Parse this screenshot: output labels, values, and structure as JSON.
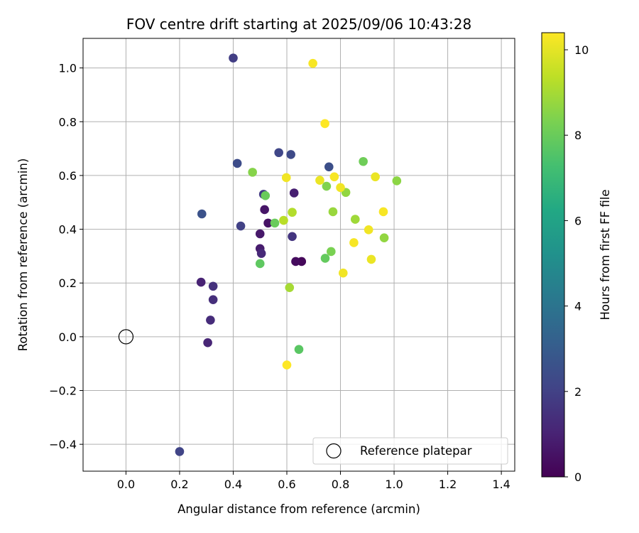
{
  "chart_data": {
    "type": "scatter",
    "title": "FOV centre drift starting at 2025/09/06 10:43:28",
    "xlabel": "Angular distance from reference (arcmin)",
    "ylabel": "Rotation from reference (arcmin)",
    "xlim": [
      -0.16,
      1.45
    ],
    "ylim": [
      -0.5,
      1.11
    ],
    "xticks": [
      0.0,
      0.2,
      0.4,
      0.6,
      0.8,
      1.0,
      1.2,
      1.4
    ],
    "xtick_labels": [
      "0.0",
      "0.2",
      "0.4",
      "0.6",
      "0.8",
      "1.0",
      "1.2",
      "1.4"
    ],
    "yticks": [
      -0.4,
      -0.2,
      0.0,
      0.2,
      0.4,
      0.6,
      0.8,
      1.0
    ],
    "ytick_labels": [
      "−0.4",
      "−0.2",
      "0.0",
      "0.2",
      "0.4",
      "0.6",
      "0.8",
      "1.0"
    ],
    "grid": true,
    "colormap": "viridis",
    "colorbar": {
      "label": "Hours from first FF file",
      "range": [
        0,
        10.4
      ],
      "ticks": [
        0,
        2,
        4,
        6,
        8,
        10
      ],
      "tick_labels": [
        "0",
        "2",
        "4",
        "6",
        "8",
        "10"
      ]
    },
    "reference": {
      "x": 0.0,
      "y": 0.0,
      "label": "Reference platepar"
    },
    "legend": {
      "location": "lower-right",
      "entries": [
        "Reference platepar"
      ]
    },
    "points": [
      {
        "x": 0.655,
        "y": 0.28,
        "h": 0.2
      },
      {
        "x": 0.633,
        "y": 0.28,
        "h": 0.3
      },
      {
        "x": 0.53,
        "y": 0.423,
        "h": 0.5
      },
      {
        "x": 0.517,
        "y": 0.473,
        "h": 0.6
      },
      {
        "x": 0.5,
        "y": 0.383,
        "h": 0.7
      },
      {
        "x": 0.5,
        "y": 0.328,
        "h": 0.8
      },
      {
        "x": 0.627,
        "y": 0.535,
        "h": 0.9
      },
      {
        "x": 0.28,
        "y": 0.203,
        "h": 1.0
      },
      {
        "x": 0.305,
        "y": -0.022,
        "h": 1.1
      },
      {
        "x": 0.505,
        "y": 0.31,
        "h": 1.2
      },
      {
        "x": 0.315,
        "y": 0.062,
        "h": 1.3
      },
      {
        "x": 0.325,
        "y": 0.138,
        "h": 1.4
      },
      {
        "x": 0.325,
        "y": 0.188,
        "h": 1.5
      },
      {
        "x": 0.62,
        "y": 0.373,
        "h": 1.6
      },
      {
        "x": 0.513,
        "y": 0.53,
        "h": 1.8
      },
      {
        "x": 0.4,
        "y": 1.037,
        "h": 1.9
      },
      {
        "x": 0.428,
        "y": 0.412,
        "h": 2.0
      },
      {
        "x": 0.2,
        "y": -0.427,
        "h": 2.1
      },
      {
        "x": 0.57,
        "y": 0.685,
        "h": 2.2
      },
      {
        "x": 0.615,
        "y": 0.678,
        "h": 2.3
      },
      {
        "x": 0.415,
        "y": 0.645,
        "h": 2.4
      },
      {
        "x": 0.757,
        "y": 0.632,
        "h": 2.5
      },
      {
        "x": 0.283,
        "y": 0.457,
        "h": 2.6
      },
      {
        "x": 0.645,
        "y": -0.047,
        "h": 7.7
      },
      {
        "x": 0.5,
        "y": 0.272,
        "h": 7.8
      },
      {
        "x": 0.743,
        "y": 0.292,
        "h": 7.9
      },
      {
        "x": 0.555,
        "y": 0.423,
        "h": 8.0
      },
      {
        "x": 0.52,
        "y": 0.525,
        "h": 8.0
      },
      {
        "x": 0.885,
        "y": 0.652,
        "h": 8.1
      },
      {
        "x": 0.765,
        "y": 0.317,
        "h": 8.3
      },
      {
        "x": 0.748,
        "y": 0.56,
        "h": 8.4
      },
      {
        "x": 0.472,
        "y": 0.612,
        "h": 8.5
      },
      {
        "x": 1.01,
        "y": 0.58,
        "h": 8.6
      },
      {
        "x": 0.963,
        "y": 0.368,
        "h": 8.7
      },
      {
        "x": 0.82,
        "y": 0.537,
        "h": 8.7
      },
      {
        "x": 0.772,
        "y": 0.465,
        "h": 8.8
      },
      {
        "x": 0.855,
        "y": 0.437,
        "h": 8.9
      },
      {
        "x": 0.61,
        "y": 0.183,
        "h": 9.0
      },
      {
        "x": 0.62,
        "y": 0.463,
        "h": 9.2
      },
      {
        "x": 0.588,
        "y": 0.433,
        "h": 9.3
      },
      {
        "x": 0.81,
        "y": 0.237,
        "h": 10.2
      },
      {
        "x": 0.915,
        "y": 0.288,
        "h": 10.1
      },
      {
        "x": 0.85,
        "y": 0.35,
        "h": 10.3
      },
      {
        "x": 0.905,
        "y": 0.398,
        "h": 10.2
      },
      {
        "x": 0.96,
        "y": 0.465,
        "h": 10.3
      },
      {
        "x": 0.93,
        "y": 0.595,
        "h": 10.1
      },
      {
        "x": 0.8,
        "y": 0.555,
        "h": 10.2
      },
      {
        "x": 0.777,
        "y": 0.595,
        "h": 10.3
      },
      {
        "x": 0.723,
        "y": 0.582,
        "h": 10.1
      },
      {
        "x": 0.598,
        "y": 0.592,
        "h": 10.2
      },
      {
        "x": 0.742,
        "y": 0.793,
        "h": 10.4
      },
      {
        "x": 0.697,
        "y": 1.017,
        "h": 10.3
      },
      {
        "x": 0.6,
        "y": -0.105,
        "h": 10.4
      }
    ]
  }
}
